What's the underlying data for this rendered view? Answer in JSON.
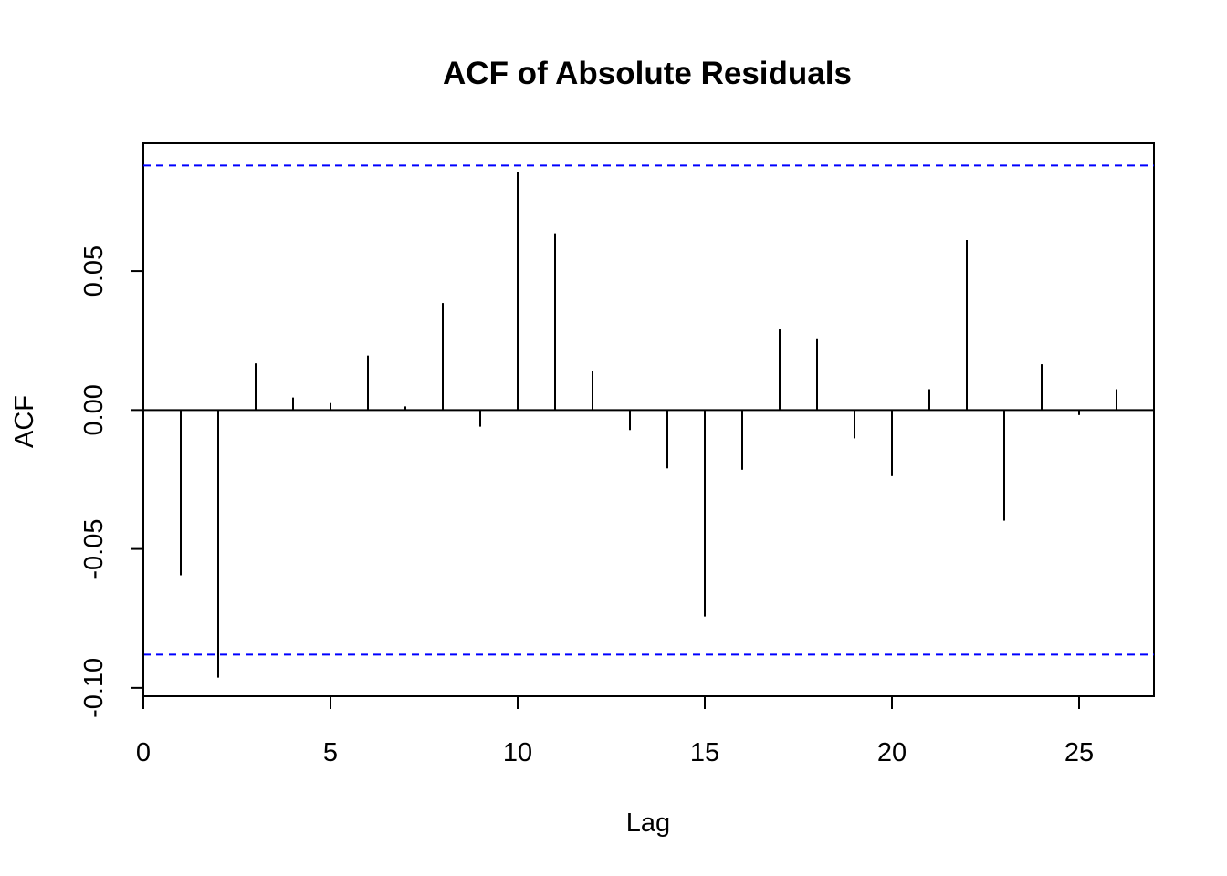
{
  "chart_data": {
    "type": "bar",
    "title": "ACF of Absolute Residuals",
    "xlabel": "Lag",
    "ylabel": "ACF",
    "xlim": [
      0,
      27
    ],
    "ylim": [
      -0.103,
      0.096
    ],
    "x_ticks": [
      {
        "value": 0,
        "label": "0"
      },
      {
        "value": 5,
        "label": "5"
      },
      {
        "value": 10,
        "label": "10"
      },
      {
        "value": 15,
        "label": "15"
      },
      {
        "value": 20,
        "label": "20"
      },
      {
        "value": 25,
        "label": "25"
      }
    ],
    "y_ticks": [
      {
        "value": -0.1,
        "label": "-0.10"
      },
      {
        "value": -0.05,
        "label": "-0.05"
      },
      {
        "value": 0.0,
        "label": "0.00"
      },
      {
        "value": 0.05,
        "label": "0.05"
      }
    ],
    "lags": [
      1,
      2,
      3,
      4,
      5,
      6,
      7,
      8,
      9,
      10,
      11,
      12,
      13,
      14,
      15,
      16,
      17,
      18,
      19,
      20,
      21,
      22,
      23,
      24,
      25,
      26
    ],
    "values": [
      -0.0595,
      -0.0963,
      0.0168,
      0.0045,
      0.0025,
      0.0196,
      0.0013,
      0.0385,
      -0.006,
      0.0855,
      0.0636,
      0.0139,
      -0.0072,
      -0.021,
      -0.0743,
      -0.0215,
      0.029,
      0.0258,
      -0.0102,
      -0.0238,
      0.0075,
      0.0612,
      -0.0398,
      0.0165,
      -0.0018,
      0.0075
    ],
    "confidence_bound": 0.088,
    "confidence_color": "#0000ff",
    "spike_color": "#000000",
    "grid": false,
    "legend": "none"
  }
}
